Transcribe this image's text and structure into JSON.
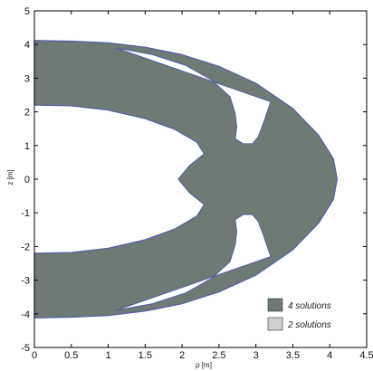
{
  "chart_data": {
    "type": "area",
    "xlabel": "ρ [m]",
    "ylabel": "z [m]",
    "xlim": [
      0,
      4.5
    ],
    "ylim": [
      -5,
      5
    ],
    "x_ticks": [
      "0",
      "0.5",
      "1",
      "1.5",
      "2",
      "2.5",
      "3",
      "3.5",
      "4",
      "4.5"
    ],
    "y_ticks": [
      "5",
      "4",
      "3",
      "2",
      "1",
      "0",
      "-1",
      "-2",
      "-3",
      "-4",
      "-5"
    ],
    "grid": false,
    "legend_position": "bottom-right",
    "series": [
      {
        "name": "4 solutions",
        "color": "#6e7a74"
      },
      {
        "name": "2 solutions",
        "color": "#d0d0d0"
      }
    ],
    "region": {
      "outer_boundary": [
        [
          0,
          4.12
        ],
        [
          0.5,
          4.1
        ],
        [
          1.0,
          4.05
        ],
        [
          1.5,
          3.92
        ],
        [
          2.0,
          3.7
        ],
        [
          2.5,
          3.35
        ],
        [
          3.0,
          2.85
        ],
        [
          3.5,
          2.1
        ],
        [
          3.85,
          1.3
        ],
        [
          4.05,
          0.6
        ],
        [
          4.1,
          0
        ]
      ],
      "inner_boundary": [
        [
          0,
          2.2
        ],
        [
          0.5,
          2.18
        ],
        [
          1.0,
          2.05
        ],
        [
          1.5,
          1.8
        ],
        [
          1.9,
          1.48
        ],
        [
          2.2,
          1.1
        ],
        [
          2.3,
          0.75
        ],
        [
          2.1,
          0.4
        ],
        [
          1.95,
          0
        ]
      ],
      "lobe": [
        [
          1.1,
          3.9
        ],
        [
          1.6,
          3.7
        ],
        [
          2.05,
          3.38
        ],
        [
          2.4,
          2.95
        ],
        [
          2.65,
          2.45
        ],
        [
          2.72,
          1.95
        ],
        [
          2.74,
          1.55
        ],
        [
          2.72,
          1.2
        ],
        [
          2.83,
          1.05
        ],
        [
          2.95,
          1.05
        ],
        [
          3.03,
          1.25
        ],
        [
          3.1,
          1.65
        ],
        [
          3.2,
          2.3
        ]
      ]
    }
  },
  "colors": {
    "fill": "#6e7a74",
    "outline": "#4d5fa8"
  }
}
